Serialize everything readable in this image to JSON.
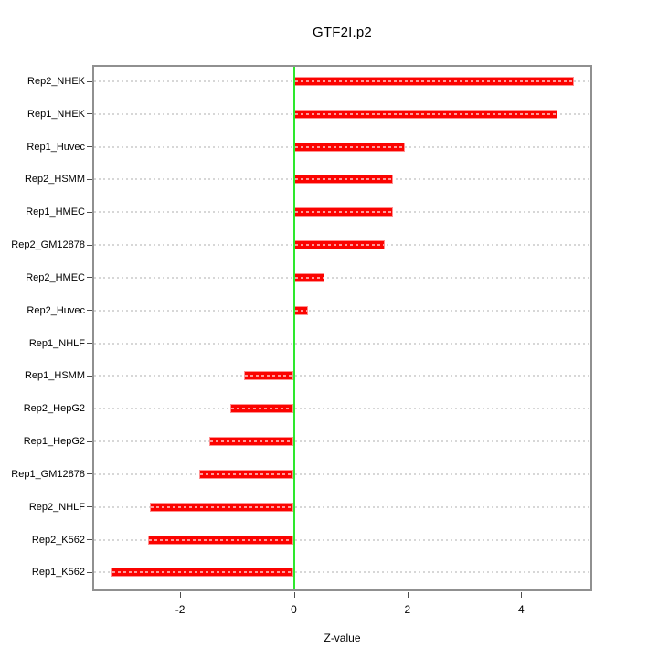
{
  "title": "GTF2I.p2",
  "chart_data": {
    "type": "bar",
    "orientation": "horizontal",
    "title": "GTF2I.p2",
    "xlabel": "Z-value",
    "ylabel": "",
    "categories": [
      "Rep2_NHEK",
      "Rep1_NHEK",
      "Rep1_Huvec",
      "Rep2_HSMM",
      "Rep1_HMEC",
      "Rep2_GM12878",
      "Rep2_HMEC",
      "Rep2_Huvec",
      "Rep1_NHLF",
      "Rep1_HSMM",
      "Rep2_HepG2",
      "Rep1_HepG2",
      "Rep1_GM12878",
      "Rep2_NHLF",
      "Rep2_K562",
      "Rep1_K562"
    ],
    "values": [
      4.92,
      4.64,
      1.96,
      1.75,
      1.74,
      1.6,
      0.54,
      0.25,
      0.01,
      -0.87,
      -1.12,
      -1.49,
      -1.66,
      -2.53,
      -2.56,
      -3.2
    ],
    "xticks": [
      -2,
      0,
      2,
      4
    ],
    "xlim": [
      -3.55,
      5.27
    ],
    "grid": true,
    "legend": "none",
    "colors": {
      "bar": "#fb0300",
      "bar_edge": "#ff9090",
      "zero_line": "#2de82d",
      "grid": "#d7d7d7",
      "box_border": "#909090",
      "text": "#000000"
    }
  }
}
